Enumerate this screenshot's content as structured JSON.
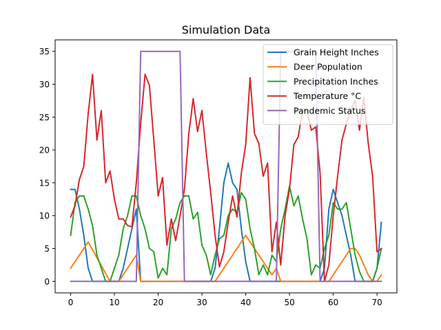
{
  "chart_data": {
    "type": "line",
    "title": "Simulation Data",
    "xlabel": "",
    "ylabel": "",
    "xlim": [
      -3.55,
      74.55
    ],
    "ylim": [
      -1.75,
      36.75
    ],
    "xticks": [
      0,
      10,
      20,
      30,
      40,
      50,
      60,
      70
    ],
    "yticks": [
      0,
      5,
      10,
      15,
      20,
      25,
      30,
      35
    ],
    "grid": false,
    "legend_position": "top-right",
    "series": [
      {
        "name": "Grain Height Inches",
        "color": "#1f77b4",
        "points": [
          [
            0,
            14
          ],
          [
            1,
            14
          ],
          [
            2,
            11
          ],
          [
            3,
            7
          ],
          [
            4,
            2
          ],
          [
            5,
            0
          ],
          [
            6,
            0
          ],
          [
            7,
            0
          ],
          [
            8,
            0
          ],
          [
            9,
            0
          ],
          [
            10,
            0
          ],
          [
            11,
            0
          ],
          [
            12,
            2
          ],
          [
            13,
            5
          ],
          [
            14,
            8
          ],
          [
            15,
            11
          ],
          [
            16,
            0
          ],
          [
            24,
            0
          ],
          [
            25,
            0
          ],
          [
            26,
            0
          ],
          [
            27,
            0
          ],
          [
            28,
            0
          ],
          [
            29,
            0
          ],
          [
            30,
            0
          ],
          [
            31,
            0
          ],
          [
            32,
            0
          ],
          [
            33,
            2
          ],
          [
            34,
            8
          ],
          [
            35,
            15
          ],
          [
            36,
            18
          ],
          [
            37,
            15
          ],
          [
            38,
            14
          ],
          [
            39,
            8
          ],
          [
            40,
            3
          ],
          [
            41,
            0
          ],
          [
            42,
            0
          ],
          [
            47,
            0
          ],
          [
            48,
            0
          ],
          [
            49,
            0
          ],
          [
            50,
            0
          ],
          [
            51,
            0
          ],
          [
            52,
            0
          ],
          [
            53,
            0
          ],
          [
            54,
            0
          ],
          [
            55,
            0
          ],
          [
            56,
            0
          ],
          [
            57,
            0
          ],
          [
            58,
            2
          ],
          [
            59,
            11
          ],
          [
            60,
            14
          ],
          [
            61,
            12
          ],
          [
            62,
            10
          ],
          [
            63,
            7
          ],
          [
            64,
            4
          ],
          [
            65,
            0
          ],
          [
            66,
            0
          ],
          [
            67,
            0
          ],
          [
            68,
            0
          ],
          [
            69,
            0
          ],
          [
            70,
            2
          ],
          [
            71,
            9
          ]
        ]
      },
      {
        "name": "Deer Population",
        "color": "#ff7f0e",
        "points": [
          [
            0,
            2
          ],
          [
            4,
            6
          ],
          [
            9,
            0
          ],
          [
            11,
            0
          ],
          [
            15,
            4
          ],
          [
            16,
            0
          ],
          [
            32,
            0
          ],
          [
            33,
            0
          ],
          [
            40,
            7
          ],
          [
            43,
            4
          ],
          [
            46,
            1
          ],
          [
            47,
            2
          ],
          [
            48,
            0
          ],
          [
            59,
            0
          ],
          [
            60,
            1
          ],
          [
            64,
            5
          ],
          [
            65,
            5
          ],
          [
            66,
            4
          ],
          [
            68,
            1
          ],
          [
            69,
            0
          ],
          [
            70,
            0
          ],
          [
            71,
            1
          ]
        ]
      },
      {
        "name": "Precipitation Inches",
        "color": "#2ca02c",
        "points": [
          [
            0,
            7
          ],
          [
            1,
            12
          ],
          [
            2,
            13
          ],
          [
            3,
            13
          ],
          [
            4,
            11
          ],
          [
            5,
            8.5
          ],
          [
            6,
            4
          ],
          [
            7,
            2
          ],
          [
            8,
            0
          ],
          [
            9,
            0
          ],
          [
            10,
            2
          ],
          [
            11,
            4
          ],
          [
            12,
            8
          ],
          [
            13,
            10
          ],
          [
            14,
            13
          ],
          [
            15,
            13
          ],
          [
            16,
            10
          ],
          [
            17,
            8
          ],
          [
            18,
            5
          ],
          [
            19,
            4.5
          ],
          [
            20,
            0.5
          ],
          [
            21,
            2
          ],
          [
            22,
            1
          ],
          [
            23,
            8
          ],
          [
            24,
            9.5
          ],
          [
            25,
            12
          ],
          [
            26,
            13
          ],
          [
            27,
            13
          ],
          [
            28,
            9.5
          ],
          [
            29,
            10.5
          ],
          [
            30,
            5.5
          ],
          [
            31,
            4
          ],
          [
            32,
            1
          ],
          [
            33,
            4
          ],
          [
            34,
            6.5
          ],
          [
            35,
            7
          ],
          [
            36,
            10
          ],
          [
            37,
            11
          ],
          [
            38,
            10.5
          ],
          [
            39,
            13.5
          ],
          [
            40,
            12.5
          ],
          [
            41,
            8
          ],
          [
            42,
            5
          ],
          [
            43,
            1
          ],
          [
            44,
            2.5
          ],
          [
            45,
            1
          ],
          [
            46,
            4
          ],
          [
            47,
            3
          ],
          [
            48,
            8
          ],
          [
            49,
            11
          ],
          [
            50,
            14.5
          ],
          [
            51,
            11.5
          ],
          [
            52,
            13
          ],
          [
            53,
            9.5
          ],
          [
            54,
            6.5
          ],
          [
            55,
            1
          ],
          [
            56,
            2.5
          ],
          [
            57,
            2
          ],
          [
            58,
            5
          ],
          [
            59,
            7
          ],
          [
            60,
            12
          ],
          [
            61,
            11
          ],
          [
            62,
            11
          ],
          [
            63,
            12
          ],
          [
            64,
            8
          ],
          [
            65,
            4
          ],
          [
            66,
            1.5
          ],
          [
            67,
            0
          ],
          [
            68,
            0
          ],
          [
            69,
            0
          ],
          [
            70,
            2
          ],
          [
            71,
            5
          ]
        ]
      },
      {
        "name": "Temperature °C",
        "color": "#d62728",
        "points": [
          [
            0,
            9.8
          ],
          [
            1,
            11.5
          ],
          [
            2,
            15.5
          ],
          [
            3,
            17.5
          ],
          [
            4,
            25.5
          ],
          [
            5,
            31.5
          ],
          [
            6,
            21.5
          ],
          [
            7,
            26
          ],
          [
            8,
            15
          ],
          [
            9,
            16.8
          ],
          [
            10,
            12.5
          ],
          [
            11,
            9.5
          ],
          [
            12,
            9.5
          ],
          [
            13,
            8.5
          ],
          [
            14,
            8.3
          ],
          [
            15,
            15
          ],
          [
            16,
            24
          ],
          [
            17,
            31.5
          ],
          [
            18,
            29.8
          ],
          [
            19,
            21.5
          ],
          [
            20,
            13
          ],
          [
            21,
            15.8
          ],
          [
            22,
            5.5
          ],
          [
            23,
            9.5
          ],
          [
            24,
            6.2
          ],
          [
            25,
            10
          ],
          [
            26,
            14
          ],
          [
            27,
            22.5
          ],
          [
            28,
            27.8
          ],
          [
            29,
            22.8
          ],
          [
            30,
            26
          ],
          [
            31,
            19.5
          ],
          [
            32,
            13.5
          ],
          [
            33,
            7
          ],
          [
            34,
            2.2
          ],
          [
            35,
            4.5
          ],
          [
            36,
            9
          ],
          [
            37,
            13
          ],
          [
            38,
            9.8
          ],
          [
            39,
            16.5
          ],
          [
            40,
            20.8
          ],
          [
            41,
            31
          ],
          [
            42,
            22.5
          ],
          [
            43,
            21
          ],
          [
            44,
            16
          ],
          [
            45,
            18
          ],
          [
            46,
            4.5
          ],
          [
            47,
            9
          ],
          [
            48,
            2.5
          ],
          [
            49,
            10
          ],
          [
            50,
            14
          ],
          [
            51,
            20.8
          ],
          [
            52,
            22
          ],
          [
            53,
            26
          ],
          [
            54,
            26
          ],
          [
            55,
            23
          ],
          [
            56,
            23.5
          ],
          [
            57,
            16.5
          ],
          [
            58,
            0
          ],
          [
            59,
            2.5
          ],
          [
            60,
            10
          ],
          [
            61,
            16
          ],
          [
            62,
            21.5
          ],
          [
            63,
            24
          ],
          [
            64,
            26
          ],
          [
            65,
            27.5
          ],
          [
            66,
            23
          ],
          [
            67,
            28
          ],
          [
            68,
            21
          ],
          [
            69,
            16
          ],
          [
            70,
            4.5
          ],
          [
            71,
            5
          ]
        ]
      },
      {
        "name": "Pandemic Status",
        "color": "#9467bd",
        "points": [
          [
            0,
            0
          ],
          [
            15,
            0
          ],
          [
            16,
            35
          ],
          [
            25,
            35
          ],
          [
            26,
            0
          ],
          [
            47,
            0
          ],
          [
            48,
            35
          ],
          [
            56,
            35
          ],
          [
            57,
            0
          ],
          [
            71,
            0
          ]
        ]
      }
    ]
  }
}
